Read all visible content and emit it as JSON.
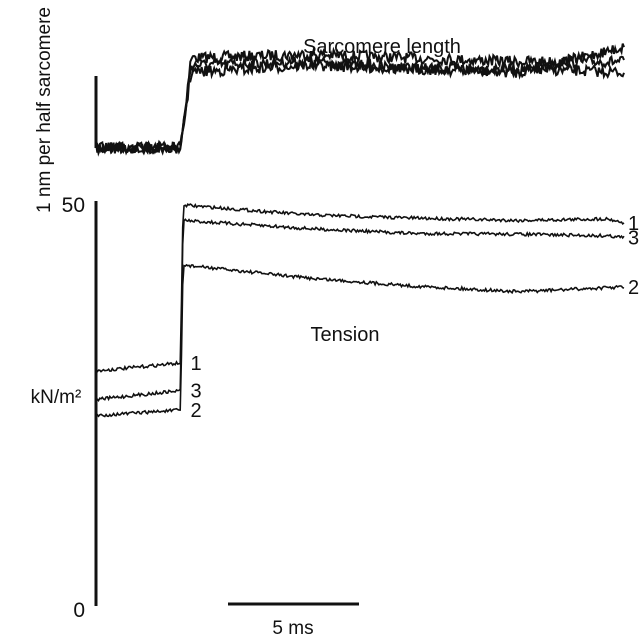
{
  "colors": {
    "background": "#ffffff",
    "ink": "#111111"
  },
  "chart_data": [
    {
      "type": "line",
      "title": "Sarcomere length",
      "ylabel": "1 nm per half sarcomere",
      "scale_bar": {
        "value": 1,
        "unit": "nm per half sarcomere"
      },
      "x_unit": "ms",
      "xlim": [
        0,
        20
      ],
      "step_time_ms": 3.2,
      "series": [
        {
          "pre_step": 0,
          "values_ms": [
            0,
            3.2,
            3.6,
            8,
            12,
            16,
            20
          ],
          "values_nm": [
            0,
            0,
            1.25,
            1.3,
            1.25,
            1.2,
            1.2
          ]
        },
        {
          "pre_step": 0,
          "values_ms": [
            0,
            3.2,
            3.6,
            8,
            12,
            16,
            20
          ],
          "values_nm": [
            0,
            0,
            1.15,
            1.2,
            1.1,
            1.1,
            1.05
          ]
        },
        {
          "pre_step": 0,
          "values_ms": [
            0,
            3.2,
            3.6,
            8,
            12,
            16,
            20
          ],
          "values_nm": [
            0,
            0,
            1.05,
            1.15,
            1.1,
            1.05,
            1.4
          ]
        }
      ]
    },
    {
      "type": "line",
      "title": "Tension",
      "ylabel": "kN/m²",
      "y_ticks": [
        "50",
        "0"
      ],
      "ylim": [
        0,
        50
      ],
      "x_unit": "ms",
      "xlim": [
        0,
        20
      ],
      "step_time_ms": 3.2,
      "scale_bar": {
        "value": 5,
        "label": "5 ms"
      },
      "series": [
        {
          "name": "1",
          "x": [
            0,
            3.2,
            3.3,
            8,
            12,
            16,
            19.4,
            20
          ],
          "y": [
            29,
            30,
            49.5,
            48.3,
            47.9,
            47.6,
            47.8,
            47.3
          ]
        },
        {
          "name": "3",
          "x": [
            0,
            3.2,
            3.3,
            8,
            12,
            16,
            19.4,
            20
          ],
          "y": [
            25.5,
            26.6,
            47.6,
            46.6,
            46.0,
            45.9,
            45.7,
            45.5
          ]
        },
        {
          "name": "2",
          "x": [
            0,
            3.2,
            3.3,
            8,
            12,
            16,
            19.4,
            20
          ],
          "y": [
            23.5,
            24.2,
            42.1,
            40.5,
            39.5,
            38.8,
            39.3,
            39.4
          ]
        }
      ]
    }
  ]
}
